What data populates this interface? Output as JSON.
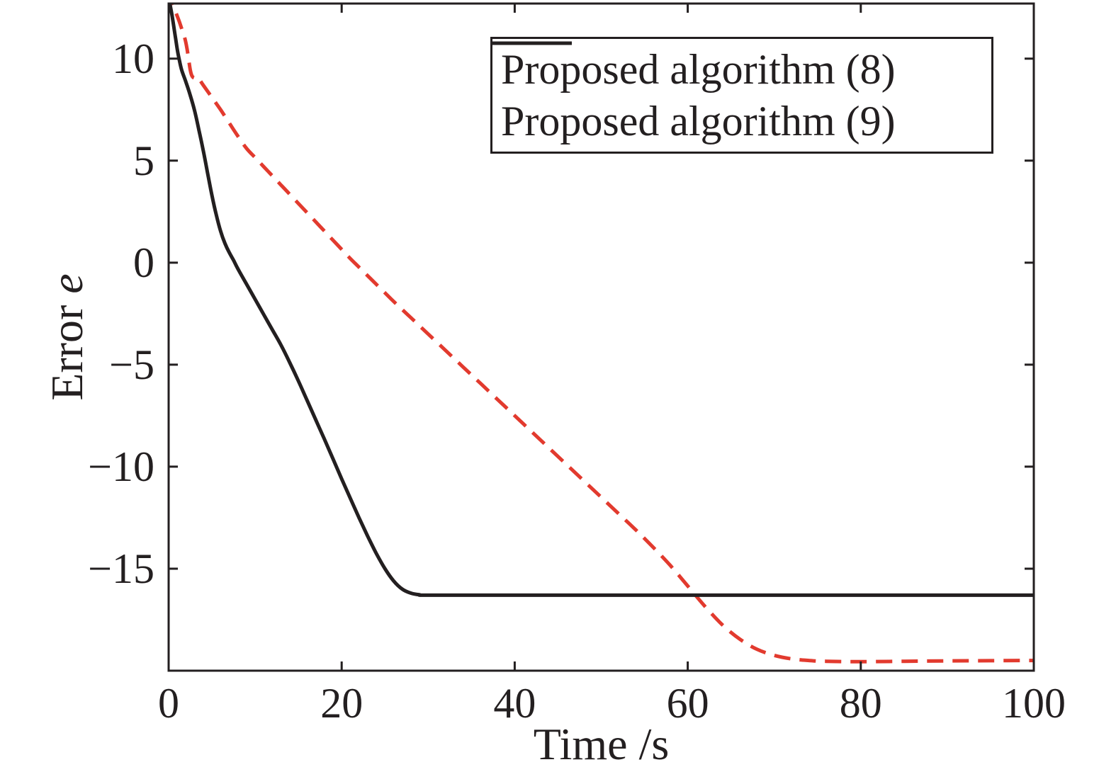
{
  "figure": {
    "background": "#ffffff",
    "axis_color": "#231f20",
    "text_color": "#231f20",
    "y_axis_label_prefix": "Error",
    "y_axis_label_var": "e",
    "x_axis_label": "Time /s"
  },
  "chart_data": {
    "type": "line",
    "title": "",
    "xlabel": "Time /s",
    "ylabel": "Error e",
    "xlim": [
      0,
      100
    ],
    "ylim": [
      -20,
      12.7
    ],
    "x_ticks": [
      0,
      20,
      40,
      60,
      80,
      100
    ],
    "y_ticks": [
      10,
      5,
      0,
      -5,
      -10,
      -15
    ],
    "grid": false,
    "legend_position": "top-right",
    "tick_style": "inward-mirrored-box",
    "series": [
      {
        "name": "Proposed algorithm (8)",
        "color": "#e23a2e",
        "line_style": "dashed",
        "line_width": 5,
        "final_value": -19.5,
        "points": [
          [
            0,
            13.4
          ],
          [
            0.4,
            12.75
          ],
          [
            0.8,
            12.3
          ],
          [
            1.2,
            11.85
          ],
          [
            1.6,
            11.35
          ],
          [
            1.9,
            10.95
          ],
          [
            2.1,
            10.55
          ],
          [
            2.3,
            10.0
          ],
          [
            2.5,
            9.45
          ],
          [
            2.7,
            9.15
          ],
          [
            3.0,
            9.05
          ],
          [
            3.3,
            9.1
          ],
          [
            3.6,
            8.95
          ],
          [
            4,
            8.7
          ],
          [
            5,
            8.1
          ],
          [
            6,
            7.5
          ],
          [
            7,
            6.85
          ],
          [
            8,
            6.2
          ],
          [
            9,
            5.6
          ],
          [
            10,
            5.15
          ],
          [
            11,
            4.7
          ],
          [
            12,
            4.25
          ],
          [
            13,
            3.8
          ],
          [
            14,
            3.35
          ],
          [
            15,
            2.9
          ],
          [
            16,
            2.45
          ],
          [
            17,
            2.0
          ],
          [
            18,
            1.55
          ],
          [
            19,
            1.1
          ],
          [
            20,
            0.65
          ],
          [
            21,
            0.2
          ],
          [
            22,
            -0.22
          ],
          [
            23,
            -0.64
          ],
          [
            24,
            -1.06
          ],
          [
            25,
            -1.48
          ],
          [
            26,
            -1.9
          ],
          [
            27,
            -2.3
          ],
          [
            28,
            -2.7
          ],
          [
            29,
            -3.1
          ],
          [
            30,
            -3.5
          ],
          [
            32,
            -4.3
          ],
          [
            34,
            -5.1
          ],
          [
            36,
            -5.9
          ],
          [
            38,
            -6.7
          ],
          [
            40,
            -7.5
          ],
          [
            42,
            -8.3
          ],
          [
            44,
            -9.1
          ],
          [
            46,
            -9.9
          ],
          [
            48,
            -10.7
          ],
          [
            50,
            -11.5
          ],
          [
            52,
            -12.3
          ],
          [
            54,
            -13.1
          ],
          [
            56,
            -13.95
          ],
          [
            58,
            -14.85
          ],
          [
            60,
            -15.85
          ],
          [
            62,
            -16.85
          ],
          [
            64,
            -17.75
          ],
          [
            66,
            -18.45
          ],
          [
            68,
            -18.95
          ],
          [
            70,
            -19.25
          ],
          [
            72,
            -19.42
          ],
          [
            74,
            -19.5
          ],
          [
            76,
            -19.54
          ],
          [
            80,
            -19.56
          ],
          [
            85,
            -19.54
          ],
          [
            90,
            -19.52
          ],
          [
            95,
            -19.51
          ],
          [
            100,
            -19.5
          ]
        ]
      },
      {
        "name": "Proposed algorithm (9)",
        "color": "#231f20",
        "line_style": "solid",
        "line_width": 5,
        "final_value": -16.3,
        "points": [
          [
            0,
            13.0
          ],
          [
            0.4,
            12.1
          ],
          [
            0.8,
            11.0
          ],
          [
            1.0,
            10.45
          ],
          [
            1.2,
            10.0
          ],
          [
            1.5,
            9.45
          ],
          [
            2,
            8.85
          ],
          [
            2.5,
            8.2
          ],
          [
            3,
            7.45
          ],
          [
            3.5,
            6.5
          ],
          [
            4,
            5.5
          ],
          [
            4.5,
            4.4
          ],
          [
            5,
            3.3
          ],
          [
            5.5,
            2.35
          ],
          [
            6,
            1.55
          ],
          [
            6.5,
            0.95
          ],
          [
            7,
            0.5
          ],
          [
            7.5,
            0.12
          ],
          [
            8,
            -0.3
          ],
          [
            9,
            -1.05
          ],
          [
            10,
            -1.8
          ],
          [
            11,
            -2.55
          ],
          [
            12,
            -3.3
          ],
          [
            13,
            -4.05
          ],
          [
            14,
            -4.9
          ],
          [
            15,
            -5.8
          ],
          [
            16,
            -6.75
          ],
          [
            17,
            -7.7
          ],
          [
            18,
            -8.65
          ],
          [
            19,
            -9.62
          ],
          [
            20,
            -10.6
          ],
          [
            21,
            -11.55
          ],
          [
            22,
            -12.5
          ],
          [
            23,
            -13.4
          ],
          [
            24,
            -14.25
          ],
          [
            25,
            -15.0
          ],
          [
            26,
            -15.6
          ],
          [
            27,
            -16.0
          ],
          [
            28,
            -16.2
          ],
          [
            29,
            -16.28
          ],
          [
            30,
            -16.3
          ],
          [
            40,
            -16.3
          ],
          [
            60,
            -16.3
          ],
          [
            80,
            -16.3
          ],
          [
            100,
            -16.3
          ]
        ]
      }
    ]
  }
}
